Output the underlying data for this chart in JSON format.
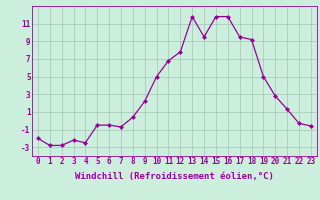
{
  "x": [
    0,
    1,
    2,
    3,
    4,
    5,
    6,
    7,
    8,
    9,
    10,
    11,
    12,
    13,
    14,
    15,
    16,
    17,
    18,
    19,
    20,
    21,
    22,
    23
  ],
  "y": [
    -2,
    -2.8,
    -2.8,
    -2.2,
    -2.5,
    -0.5,
    -0.5,
    -0.7,
    0.4,
    2.2,
    5.0,
    6.8,
    7.8,
    11.8,
    9.5,
    11.8,
    11.8,
    9.5,
    9.2,
    5.0,
    2.8,
    1.3,
    -0.3,
    -0.6
  ],
  "line_color": "#990099",
  "marker": "D",
  "marker_size": 2.0,
  "bg_color": "#cceedd",
  "grid_color": "#aaccbb",
  "xlabel": "Windchill (Refroidissement éolien,°C)",
  "xlabel_fontsize": 6.5,
  "xlim": [
    -0.5,
    23.5
  ],
  "ylim": [
    -4,
    13
  ],
  "yticks": [
    -3,
    -1,
    1,
    3,
    5,
    7,
    9,
    11
  ],
  "xticks": [
    0,
    1,
    2,
    3,
    4,
    5,
    6,
    7,
    8,
    9,
    10,
    11,
    12,
    13,
    14,
    15,
    16,
    17,
    18,
    19,
    20,
    21,
    22,
    23
  ],
  "tick_fontsize": 5.5
}
